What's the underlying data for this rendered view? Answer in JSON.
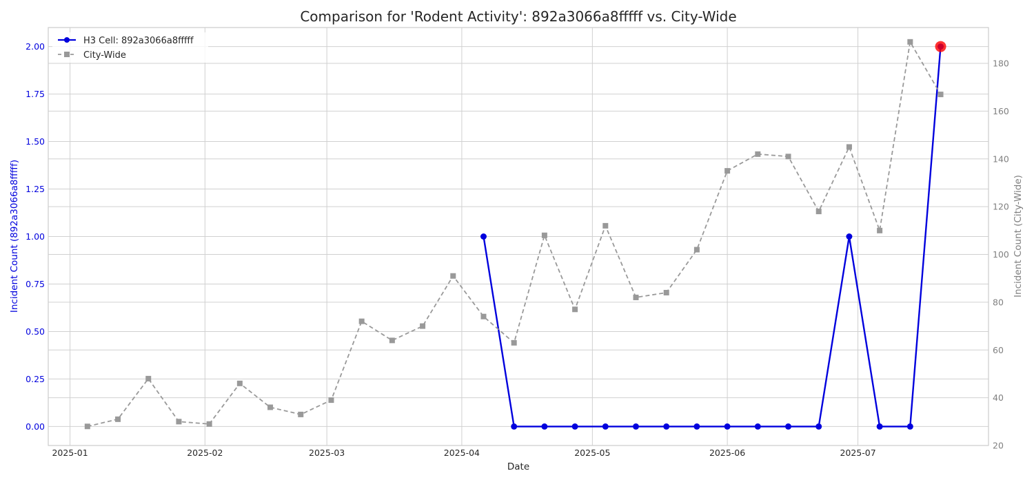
{
  "chart_data": {
    "type": "line",
    "title": "Comparison for 'Rodent Activity': 892a3066a8fffff vs. City-Wide",
    "xlabel": "Date",
    "ylabel_left": "Incident Count (892a3066a8fffff)",
    "ylabel_right": "Incident Count (City-Wide)",
    "grid": true,
    "legend_position": "top-left",
    "x_ticks": [
      "2025-01",
      "2025-02",
      "2025-03",
      "2025-04",
      "2025-05",
      "2025-06",
      "2025-07"
    ],
    "y_left_ticks": [
      "0.00",
      "0.25",
      "0.50",
      "0.75",
      "1.00",
      "1.25",
      "1.50",
      "1.75",
      "2.00"
    ],
    "y_right_ticks": [
      "20",
      "40",
      "60",
      "80",
      "100",
      "120",
      "140",
      "160",
      "180"
    ],
    "xlim": [
      "2024-12-27",
      "2025-07-31"
    ],
    "ylim_left": [
      -0.1,
      2.1
    ],
    "ylim_right": [
      20,
      195
    ],
    "series": [
      {
        "name": "H3 Cell: 892a3066a8fffff",
        "axis": "left",
        "color": "#0000dd",
        "style": "solid",
        "marker": "circle",
        "x": [
          "2025-04-06",
          "2025-04-13",
          "2025-04-20",
          "2025-04-27",
          "2025-05-04",
          "2025-05-11",
          "2025-05-18",
          "2025-05-25",
          "2025-06-01",
          "2025-06-08",
          "2025-06-15",
          "2025-06-22",
          "2025-06-29",
          "2025-07-06",
          "2025-07-13",
          "2025-07-20"
        ],
        "values": [
          1,
          0,
          0,
          0,
          0,
          0,
          0,
          0,
          0,
          0,
          0,
          0,
          1,
          0,
          0,
          2
        ]
      },
      {
        "name": "City-Wide",
        "axis": "right",
        "color": "#999999",
        "style": "dashed",
        "marker": "square",
        "x": [
          "2025-01-05",
          "2025-01-12",
          "2025-01-19",
          "2025-01-26",
          "2025-02-02",
          "2025-02-09",
          "2025-02-16",
          "2025-02-23",
          "2025-03-02",
          "2025-03-09",
          "2025-03-16",
          "2025-03-23",
          "2025-03-30",
          "2025-04-06",
          "2025-04-13",
          "2025-04-20",
          "2025-04-27",
          "2025-05-04",
          "2025-05-11",
          "2025-05-18",
          "2025-05-25",
          "2025-06-01",
          "2025-06-08",
          "2025-06-15",
          "2025-06-22",
          "2025-06-29",
          "2025-07-06",
          "2025-07-13",
          "2025-07-20"
        ],
        "values": [
          28,
          31,
          48,
          30,
          29,
          46,
          36,
          33,
          39,
          72,
          64,
          70,
          91,
          74,
          63,
          108,
          77,
          112,
          82,
          84,
          102,
          135,
          142,
          141,
          118,
          145,
          110,
          189,
          167
        ]
      }
    ],
    "highlight": {
      "x": "2025-07-20",
      "value": 2,
      "axis": "left",
      "color": "#ff0000"
    }
  }
}
